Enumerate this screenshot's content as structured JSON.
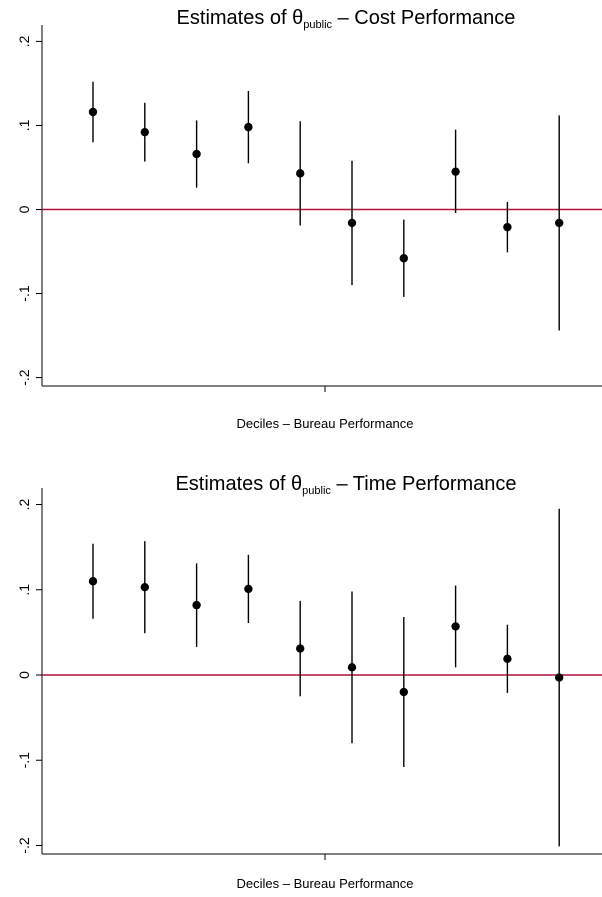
{
  "chart_data": [
    {
      "type": "scatter",
      "title_prefix": "Estimates of θ",
      "title_sub": "public",
      "title_suffix": " – Cost Performance",
      "xlabel": "Deciles – Bureau Performance",
      "ylabel": "",
      "ylim": [
        -0.21,
        0.21
      ],
      "yticks": [
        {
          "value": 0.2,
          "label": ".2"
        },
        {
          "value": 0.1,
          "label": ".1"
        },
        {
          "value": 0,
          "label": "0"
        },
        {
          "value": -0.1,
          "label": "-.1"
        },
        {
          "value": -0.2,
          "label": "-.2"
        }
      ],
      "reference_line": {
        "y": 0,
        "color": "#b0103a"
      },
      "series": [
        {
          "x": [
            1,
            2,
            3,
            4,
            5,
            6,
            7,
            8,
            9,
            10
          ],
          "estimate": [
            0.116,
            0.092,
            0.066,
            0.098,
            0.043,
            -0.016,
            -0.058,
            0.045,
            -0.021,
            -0.016
          ],
          "ci_low": [
            0.08,
            0.057,
            0.026,
            0.055,
            -0.019,
            -0.09,
            -0.104,
            -0.004,
            -0.051,
            -0.144
          ],
          "ci_high": [
            0.152,
            0.127,
            0.106,
            0.141,
            0.105,
            0.058,
            -0.012,
            0.095,
            0.009,
            0.112
          ]
        }
      ]
    },
    {
      "type": "scatter",
      "title_prefix": "Estimates of θ",
      "title_sub": "public",
      "title_suffix": " – Time Performance",
      "xlabel": "Deciles – Bureau Performance",
      "ylabel": "",
      "ylim": [
        -0.21,
        0.21
      ],
      "yticks": [
        {
          "value": 0.2,
          "label": ".2"
        },
        {
          "value": 0.1,
          "label": ".1"
        },
        {
          "value": 0,
          "label": "0"
        },
        {
          "value": -0.1,
          "label": "-.1"
        },
        {
          "value": -0.2,
          "label": "-.2"
        }
      ],
      "reference_line": {
        "y": 0,
        "color": "#b0103a"
      },
      "series": [
        {
          "x": [
            1,
            2,
            3,
            4,
            5,
            6,
            7,
            8,
            9,
            10
          ],
          "estimate": [
            0.11,
            0.103,
            0.082,
            0.101,
            0.031,
            0.009,
            -0.02,
            0.057,
            0.019,
            -0.003
          ],
          "ci_low": [
            0.066,
            0.049,
            0.033,
            0.061,
            -0.025,
            -0.08,
            -0.108,
            0.009,
            -0.021,
            -0.201
          ],
          "ci_high": [
            0.154,
            0.157,
            0.131,
            0.141,
            0.087,
            0.098,
            0.068,
            0.105,
            0.059,
            0.195
          ]
        }
      ]
    }
  ]
}
